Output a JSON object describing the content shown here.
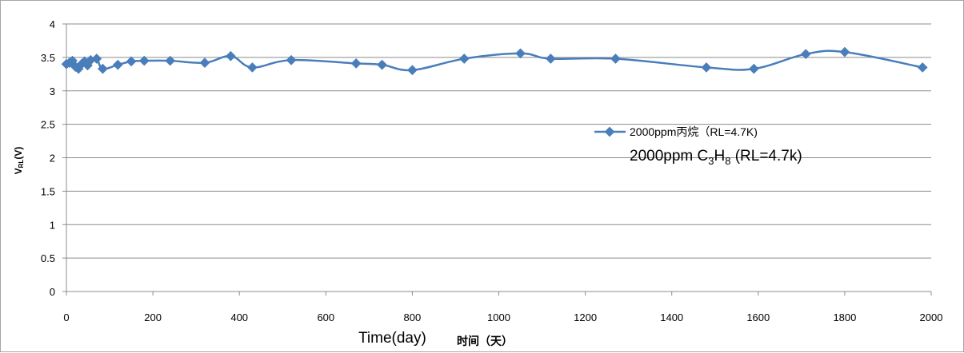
{
  "chart_data": {
    "type": "line",
    "title": "",
    "xlabel": "Time(day)",
    "xlabel_secondary": "时间（天）",
    "ylabel": "V",
    "ylabel_subscript": "RL",
    "ylabel_suffix": "(V)",
    "xlim": [
      0,
      2000
    ],
    "ylim": [
      0,
      4
    ],
    "x_ticks": [
      0,
      200,
      400,
      600,
      800,
      1000,
      1200,
      1400,
      1600,
      1800,
      2000
    ],
    "y_ticks": [
      0,
      0.5,
      1,
      1.5,
      2,
      2.5,
      3,
      3.5,
      4
    ],
    "y_tick_labels": [
      "0",
      "0.5",
      "1",
      "1.5",
      "2",
      "2.5",
      "3",
      "3.5",
      "4"
    ],
    "grid": "horizontal",
    "legend_position": "right-center",
    "series": [
      {
        "name": "2000ppm丙烷（RL=4.7K)",
        "color": "#4a7ebb",
        "marker": "diamond",
        "points": [
          [
            0,
            3.4
          ],
          [
            7,
            3.42
          ],
          [
            14,
            3.45
          ],
          [
            21,
            3.36
          ],
          [
            28,
            3.33
          ],
          [
            35,
            3.4
          ],
          [
            42,
            3.44
          ],
          [
            49,
            3.38
          ],
          [
            56,
            3.46
          ],
          [
            70,
            3.48
          ],
          [
            84,
            3.33
          ],
          [
            119,
            3.39
          ],
          [
            150,
            3.44
          ],
          [
            180,
            3.45
          ],
          [
            240,
            3.45
          ],
          [
            320,
            3.42
          ],
          [
            380,
            3.52
          ],
          [
            430,
            3.35
          ],
          [
            520,
            3.46
          ],
          [
            670,
            3.41
          ],
          [
            730,
            3.39
          ],
          [
            800,
            3.31
          ],
          [
            920,
            3.48
          ],
          [
            1050,
            3.56
          ],
          [
            1120,
            3.48
          ],
          [
            1270,
            3.48
          ],
          [
            1480,
            3.35
          ],
          [
            1590,
            3.33
          ],
          [
            1710,
            3.55
          ],
          [
            1800,
            3.58
          ],
          [
            1980,
            3.35
          ]
        ]
      }
    ],
    "annotation": {
      "prefix": "2000ppm C",
      "sub1": "3",
      "mid": "H",
      "sub2": "8",
      "suffix": " (RL=4.7k)"
    }
  }
}
